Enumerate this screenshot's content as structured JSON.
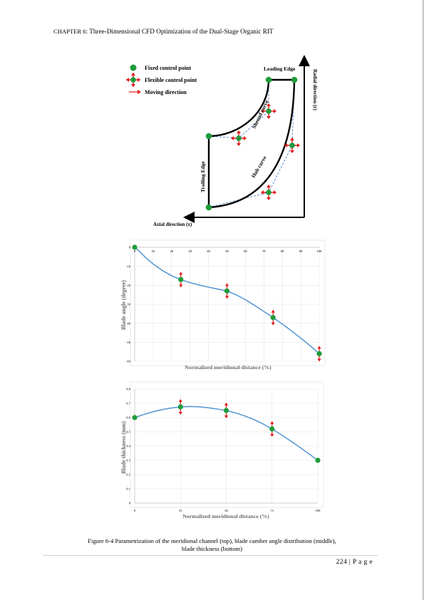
{
  "header": {
    "chapter_word": "CHAPTER 6",
    "chapter_title": ": Three-Dimensional CFD Optimization of the Dual-Stage Organic RIT"
  },
  "figure_top": {
    "legend": {
      "fixed": "Fixed control point",
      "flexible": "Flexible control point",
      "moving": "Moving direction"
    },
    "labels": {
      "leading_edge": "Leading Edge",
      "trailing_edge": "Trailing Edge",
      "shroud_curve": "Shroud curve",
      "hub_curve": "Hub curve",
      "radial_axis": "Radial direction (r)",
      "axial_axis": "Axial direction (x)"
    },
    "colors": {
      "fixed": "#1e9c3a",
      "arrow": "#e01b1b",
      "curve": "#000000",
      "dashed": "#3a6fc4"
    }
  },
  "chart_data": [
    {
      "type": "line",
      "title": "",
      "xlabel": "Normalized meridional distance (%)",
      "ylabel": "Blade angle (degree)",
      "xlim": [
        0,
        100
      ],
      "ylim": [
        -60,
        0
      ],
      "x_ticks": [
        "0",
        "10",
        "20",
        "30",
        "40",
        "50",
        "60",
        "70",
        "80",
        "90",
        "100"
      ],
      "y_ticks": [
        "0",
        "-10",
        "-20",
        "-30",
        "-40",
        "-50",
        "-60"
      ],
      "grid": true,
      "line_color": "#5b9bd5",
      "control_points": [
        {
          "x": 0,
          "y": 0,
          "kind": "fixed"
        },
        {
          "x": 25,
          "y": -17,
          "kind": "flexible"
        },
        {
          "x": 50,
          "y": -23,
          "kind": "flexible"
        },
        {
          "x": 75,
          "y": -37,
          "kind": "flexible"
        },
        {
          "x": 100,
          "y": -56,
          "kind": "flexible"
        }
      ],
      "curve": {
        "x": [
          0,
          3,
          6,
          10,
          15,
          20,
          25,
          30,
          35,
          40,
          45,
          50,
          55,
          60,
          65,
          70,
          75,
          80,
          85,
          90,
          95,
          100
        ],
        "y": [
          0,
          -2.5,
          -5.5,
          -8.8,
          -12.2,
          -15,
          -17,
          -18.6,
          -19.9,
          -21,
          -22,
          -23,
          -25,
          -27.6,
          -30.6,
          -33.8,
          -37,
          -40.4,
          -44,
          -47.8,
          -51.8,
          -56
        ]
      }
    },
    {
      "type": "line",
      "title": "",
      "xlabel": "Normalized meridional distance (%)",
      "ylabel": "Blade thickness (mm)",
      "xlim": [
        0,
        100
      ],
      "ylim": [
        0,
        0.8
      ],
      "x_ticks": [
        "0",
        "25",
        "50",
        "75",
        "100"
      ],
      "y_ticks": [
        "0",
        "0.1",
        "0.2",
        "0.3",
        "0.4",
        "0.5",
        "0.6",
        "0.7",
        "0.8"
      ],
      "grid": true,
      "line_color": "#5b9bd5",
      "control_points": [
        {
          "x": 0,
          "y": 0.6,
          "kind": "fixed"
        },
        {
          "x": 25,
          "y": 0.675,
          "kind": "flexible"
        },
        {
          "x": 50,
          "y": 0.65,
          "kind": "flexible"
        },
        {
          "x": 75,
          "y": 0.52,
          "kind": "flexible"
        },
        {
          "x": 100,
          "y": 0.3,
          "kind": "fixed"
        }
      ],
      "curve": {
        "x": [
          0,
          5,
          10,
          15,
          20,
          25,
          30,
          35,
          40,
          45,
          50,
          55,
          60,
          65,
          70,
          75,
          80,
          85,
          90,
          95,
          100
        ],
        "y": [
          0.6,
          0.622,
          0.641,
          0.656,
          0.667,
          0.675,
          0.678,
          0.676,
          0.669,
          0.66,
          0.65,
          0.633,
          0.612,
          0.587,
          0.556,
          0.52,
          0.48,
          0.437,
          0.393,
          0.347,
          0.3
        ]
      }
    }
  ],
  "caption": {
    "line1": "Figure 6-4 Parametrization of the meridional channel (top), blade camber angle distribution (middle),",
    "line2": "blade thickness (bottom)"
  },
  "page": {
    "number": "224",
    "sep": " | ",
    "word": "P a g e"
  }
}
